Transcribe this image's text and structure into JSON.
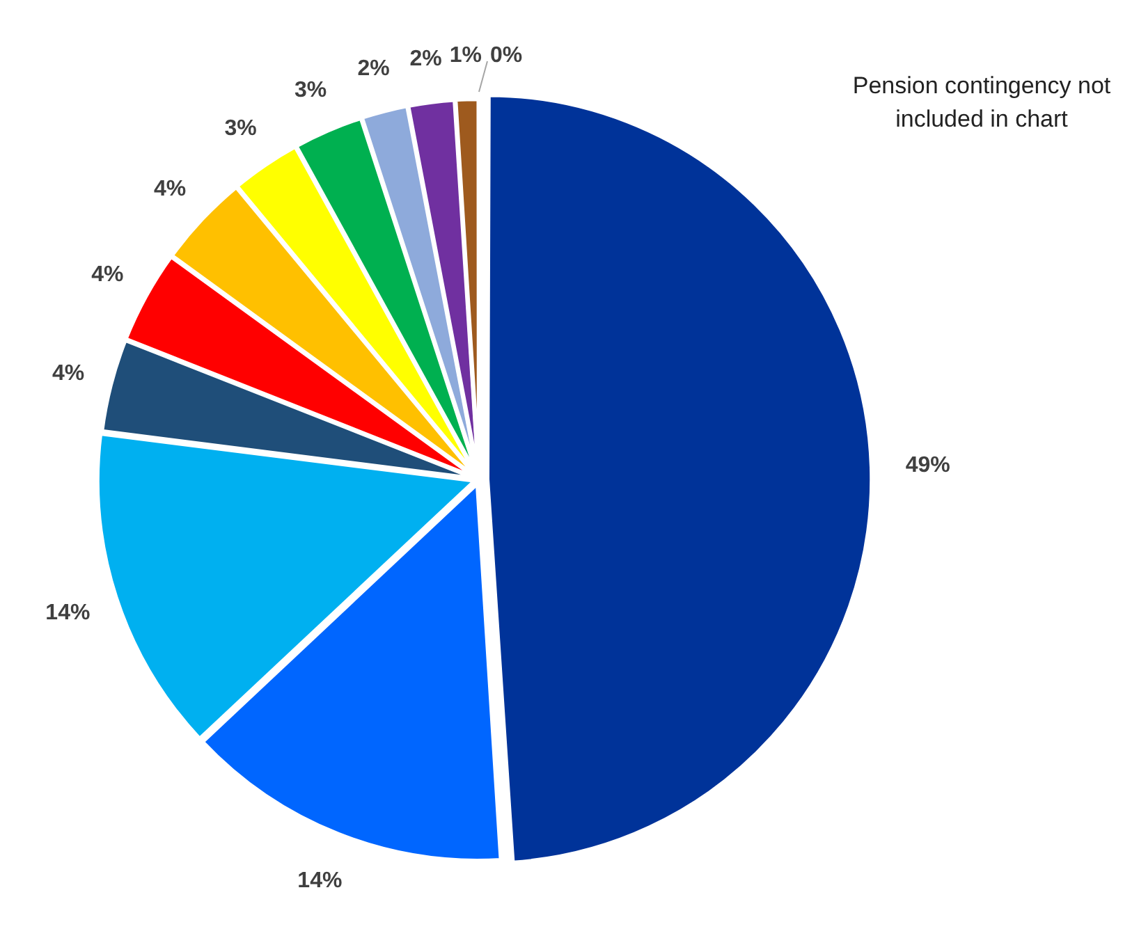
{
  "chart_data": {
    "type": "pie",
    "categories": [
      null,
      null,
      null,
      null,
      null,
      null,
      null,
      null,
      null,
      null,
      null,
      null
    ],
    "values": [
      49,
      14,
      14,
      4,
      4,
      4,
      3,
      3,
      2,
      2,
      1,
      0
    ],
    "colors": [
      "#003399",
      "#0066ff",
      "#00b0f0",
      "#1f4e79",
      "#ff0000",
      "#ffc000",
      "#ffff00",
      "#00b050",
      "#8eaadb",
      "#7030a0",
      "#9e5a1e",
      "#a5a5a5"
    ],
    "value_labels": [
      "49%",
      "14%",
      "14%",
      "4%",
      "4%",
      "4%",
      "3%",
      "3%",
      "2%",
      "2%",
      "1%",
      "0%"
    ],
    "legend": false,
    "annotations": [
      "Pension contingency not included in chart"
    ]
  }
}
